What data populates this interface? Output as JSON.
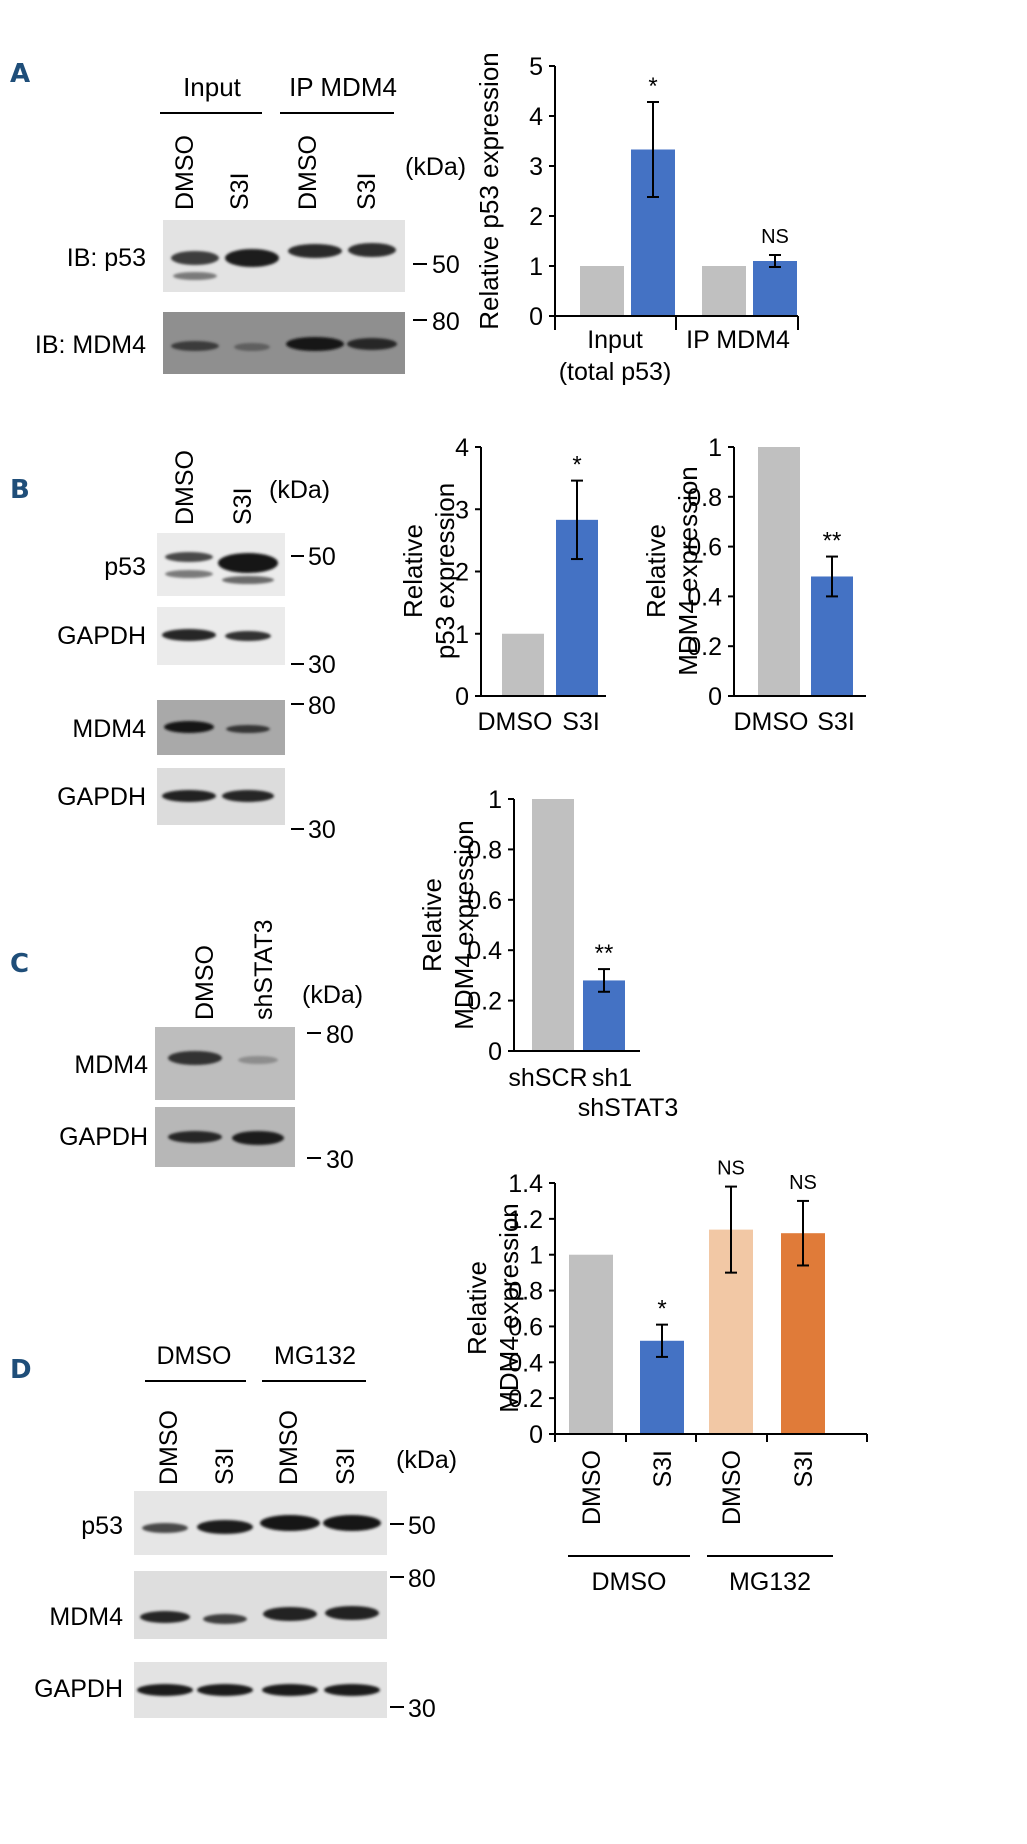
{
  "panels": {
    "A": {
      "letter": "A",
      "header_left": "Input",
      "header_right": "IP MDM4",
      "lanes": [
        "DMSO",
        "S3I",
        "DMSO",
        "S3I"
      ],
      "kda": "(kDa)",
      "row_labels": [
        "IB: p53",
        "IB: MDM4"
      ],
      "markers": [
        "50",
        "80"
      ]
    },
    "B": {
      "letter": "B",
      "lanes": [
        "DMSO",
        "S3I"
      ],
      "kda": "(kDa)",
      "row_labels": [
        "p53",
        "GAPDH",
        "MDM4",
        "GAPDH"
      ],
      "markers": [
        "50",
        "30",
        "80",
        "30"
      ]
    },
    "C": {
      "letter": "C",
      "lanes": [
        "DMSO",
        "shSTAT3"
      ],
      "kda": "(kDa)",
      "row_labels": [
        "MDM4",
        "GAPDH"
      ],
      "markers": [
        "80",
        "30"
      ]
    },
    "D": {
      "letter": "D",
      "header_left": "DMSO",
      "header_right": "MG132",
      "lanes": [
        "DMSO",
        "S3I",
        "DMSO",
        "S3I"
      ],
      "kda": "(kDa)",
      "row_labels": [
        "p53",
        "MDM4",
        "GAPDH"
      ],
      "markers": [
        "50",
        "80",
        "30"
      ]
    }
  },
  "colors": {
    "control": "#c0c0c0",
    "treated": "#4472c4",
    "mg_control": "#f2c8a5",
    "mg_treated": "#e07b39"
  },
  "chart_data": [
    {
      "id": "A",
      "type": "bar",
      "ylabel": "Relative p53 expression",
      "ylim": [
        0,
        5
      ],
      "yticks": [
        "0",
        "1",
        "2",
        "3",
        "4",
        "5"
      ],
      "groups": [
        "Input\n(total p53)",
        "IP MDM4"
      ],
      "values": [
        1,
        3.33,
        1,
        1.1
      ],
      "errors": [
        0,
        0.95,
        0,
        0.12
      ],
      "annotations": [
        "",
        "*",
        "",
        "NS"
      ]
    },
    {
      "id": "B1",
      "type": "bar",
      "ylabel": "Relative\np53 expression",
      "ylim": [
        0,
        4
      ],
      "yticks": [
        "0",
        "1",
        "2",
        "3",
        "4"
      ],
      "categories": [
        "DMSO",
        "S3I"
      ],
      "values": [
        1,
        2.83
      ],
      "errors": [
        0,
        0.63
      ],
      "annotations": [
        "",
        "*"
      ]
    },
    {
      "id": "B2",
      "type": "bar",
      "ylabel": "Relative\nMDM4 expression",
      "ylim": [
        0,
        1
      ],
      "yticks": [
        "0",
        "0.2",
        "0.4",
        "0.6",
        "0.8",
        "1"
      ],
      "categories": [
        "DMSO",
        "S3I"
      ],
      "values": [
        1,
        0.48
      ],
      "errors": [
        0,
        0.08
      ],
      "annotations": [
        "",
        "**"
      ]
    },
    {
      "id": "C",
      "type": "bar",
      "ylabel": "Relative\nMDM4 expression",
      "ylim": [
        0,
        1
      ],
      "yticks": [
        "0",
        "0.2",
        "0.4",
        "0.6",
        "0.8",
        "1"
      ],
      "categories": [
        "shSCR",
        "sh1"
      ],
      "group_label": "shSTAT3",
      "values": [
        1,
        0.28
      ],
      "errors": [
        0,
        0.045
      ],
      "annotations": [
        "",
        "**"
      ]
    },
    {
      "id": "D",
      "type": "bar",
      "ylabel": "Relative\nMDM4 expression",
      "ylim": [
        0,
        1.4
      ],
      "yticks": [
        "0",
        "0.2",
        "0.4",
        "0.6",
        "0.8",
        "1",
        "1.2",
        "1.4"
      ],
      "categories": [
        "DMSO",
        "S3I",
        "DMSO",
        "S3I"
      ],
      "groups": [
        "DMSO",
        "MG132"
      ],
      "values": [
        1,
        0.52,
        1.14,
        1.12
      ],
      "errors": [
        0,
        0.09,
        0.24,
        0.18
      ],
      "annotations": [
        "",
        "*",
        "NS",
        "NS"
      ]
    }
  ]
}
